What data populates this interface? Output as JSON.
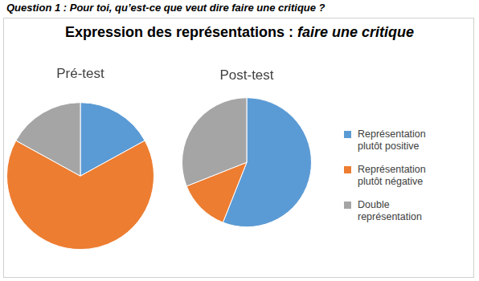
{
  "question": "Question 1 : Pour toi, qu’est-ce que veut dire faire une critique ?",
  "title": {
    "text": "Expression des représentations :",
    "emphasis": "faire une critique"
  },
  "chart_data": [
    {
      "type": "pie",
      "title": "Pré-test",
      "categories": [
        "Représentation plutôt positive",
        "Représentation plutôt négative",
        "Double représentation"
      ],
      "values": [
        17,
        66,
        17
      ],
      "colors": [
        "#5b9bd5",
        "#ed7d31",
        "#a5a5a5"
      ],
      "legend": "right"
    },
    {
      "type": "pie",
      "title": "Post-test",
      "categories": [
        "Représentation plutôt positive",
        "Représentation plutôt négative",
        "Double représentation"
      ],
      "values": [
        56,
        13,
        31
      ],
      "colors": [
        "#5b9bd5",
        "#ed7d31",
        "#a5a5a5"
      ],
      "legend": "right"
    }
  ]
}
